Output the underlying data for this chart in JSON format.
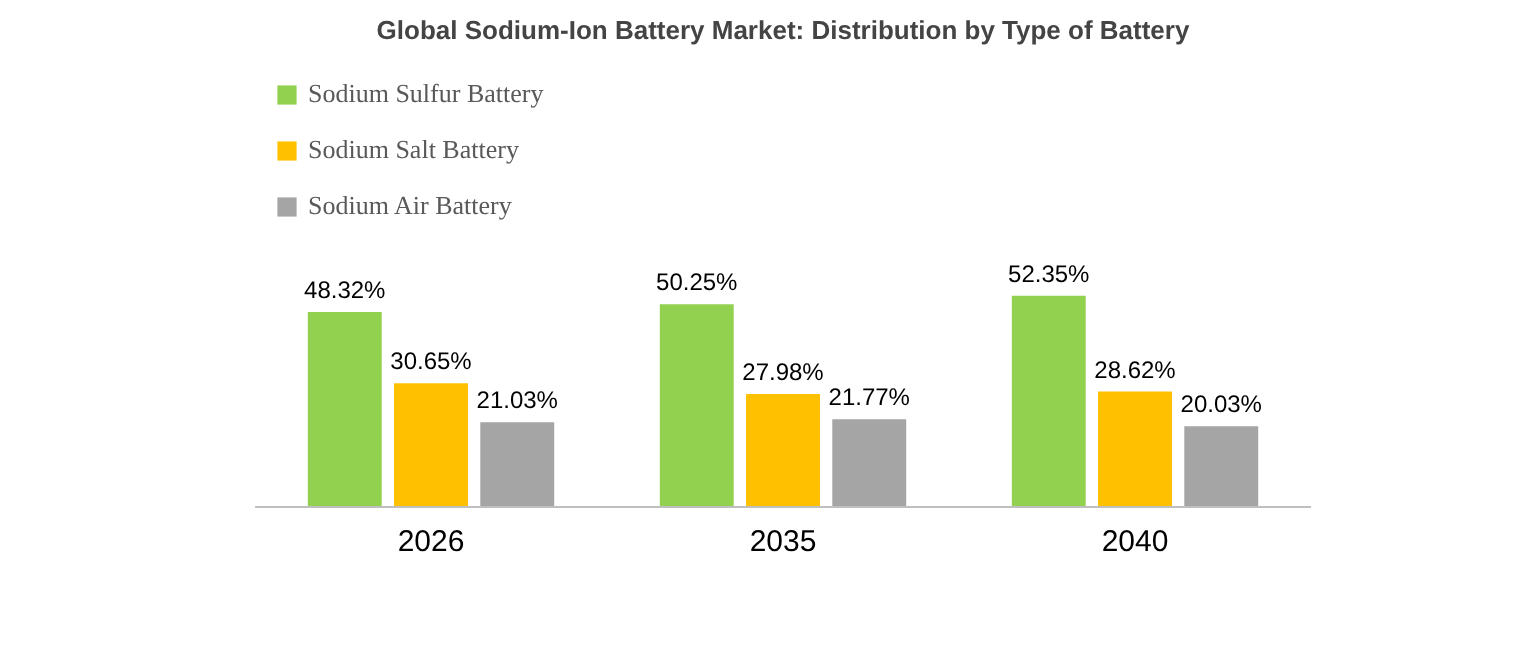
{
  "chart_data": {
    "type": "bar",
    "title": "Global Sodium-Ion Battery Market: Distribution by Type of Battery",
    "categories": [
      "2026",
      "2035",
      "2040"
    ],
    "legend": "top left",
    "grid": false,
    "series": [
      {
        "name": "Sodium Sulfur Battery",
        "color": "#92d050",
        "values": [
          48.32,
          50.25,
          52.35
        ],
        "value_labels": [
          "48.32%",
          "50.25%",
          "52.35%"
        ]
      },
      {
        "name": "Sodium Salt Battery",
        "color": "#ffc000",
        "values": [
          30.65,
          27.98,
          28.62
        ],
        "value_labels": [
          "30.65%",
          "27.98%",
          "28.62%"
        ]
      },
      {
        "name": "Sodium Air Battery",
        "color": "#a5a5a5",
        "values": [
          21.03,
          21.77,
          20.03
        ],
        "value_labels": [
          "21.03%",
          "21.77%",
          "20.03%"
        ]
      }
    ]
  }
}
